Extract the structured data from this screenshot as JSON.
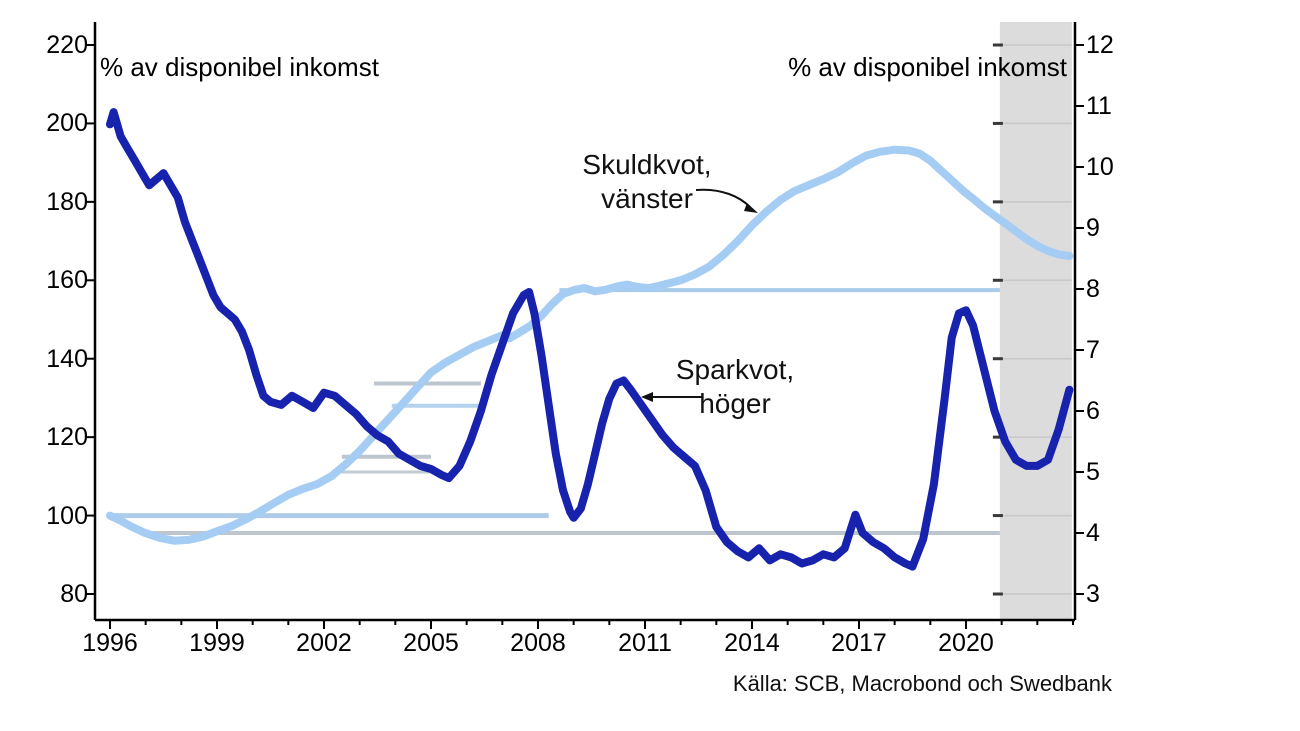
{
  "header": {
    "left_axis_unit": "% av disponibel inkomst",
    "right_axis_unit": "% av disponibel inkomst"
  },
  "annotations": {
    "debt": {
      "line1": "Skuldkvot,",
      "line2": "vänster"
    },
    "savings": {
      "line1": "Sparkvot,",
      "line2": "höger"
    }
  },
  "source": "Källa: SCB, Macrobond och Swedbank",
  "colors": {
    "debt_line": "#a5cdf3",
    "savings_line": "#1722ad",
    "forecast_band": "#dcdcdc",
    "band_gridline": "#c8c8c8",
    "ref_light_blue": "#aecbe9",
    "ref_gray": "#bdc6cf",
    "axis": "#000000"
  },
  "chart_data": {
    "type": "line",
    "x_axis": {
      "tick_years": [
        1996,
        1999,
        2002,
        2005,
        2008,
        2011,
        2014,
        2017,
        2020
      ],
      "range": [
        1995.6,
        2023.1
      ]
    },
    "left_axis": {
      "ticks": [
        220,
        200,
        180,
        160,
        140,
        120,
        100,
        80
      ],
      "range": [
        80,
        220
      ],
      "unit": "% av disponibel inkomst"
    },
    "right_axis": {
      "ticks": [
        12,
        11,
        10,
        9,
        8,
        7,
        6,
        5,
        4,
        3
      ],
      "range": [
        3,
        12
      ],
      "unit": "% av disponibel inkomst"
    },
    "forecast_band": {
      "from": 2020.95,
      "to": 2022.97
    },
    "series": [
      {
        "name": "Skuldkvot",
        "axis": "left",
        "color": "#a5cdf3",
        "width": 8,
        "points": [
          [
            1996.0,
            100
          ],
          [
            1996.3,
            98.7
          ],
          [
            1996.6,
            97.2
          ],
          [
            1997.0,
            95.5
          ],
          [
            1997.4,
            94.3
          ],
          [
            1997.8,
            93.6
          ],
          [
            1998.2,
            93.8
          ],
          [
            1998.6,
            94.6
          ],
          [
            1999.0,
            96.0
          ],
          [
            1999.4,
            97.3
          ],
          [
            1999.8,
            99.0
          ],
          [
            2000.2,
            101.0
          ],
          [
            2000.6,
            103.2
          ],
          [
            2001.0,
            105.3
          ],
          [
            2001.4,
            106.8
          ],
          [
            2001.8,
            108.0
          ],
          [
            2002.2,
            110.0
          ],
          [
            2002.6,
            113.0
          ],
          [
            2003.0,
            116.5
          ],
          [
            2003.4,
            120.5
          ],
          [
            2003.8,
            124.5
          ],
          [
            2004.2,
            128.5
          ],
          [
            2004.6,
            132.5
          ],
          [
            2005.0,
            136.5
          ],
          [
            2005.4,
            139.0
          ],
          [
            2005.8,
            141.0
          ],
          [
            2006.2,
            143.0
          ],
          [
            2006.6,
            144.5
          ],
          [
            2007.0,
            146.0
          ],
          [
            2007.2,
            145.2
          ],
          [
            2007.5,
            146.8
          ],
          [
            2007.8,
            148.5
          ],
          [
            2008.1,
            151.0
          ],
          [
            2008.4,
            154.0
          ],
          [
            2008.7,
            156.5
          ],
          [
            2009.0,
            157.5
          ],
          [
            2009.3,
            158.0
          ],
          [
            2009.6,
            157.2
          ],
          [
            2009.9,
            157.6
          ],
          [
            2010.2,
            158.4
          ],
          [
            2010.5,
            158.9
          ],
          [
            2010.8,
            158.3
          ],
          [
            2011.1,
            158.0
          ],
          [
            2011.4,
            158.6
          ],
          [
            2011.7,
            159.3
          ],
          [
            2012.0,
            160.0
          ],
          [
            2012.4,
            161.5
          ],
          [
            2012.8,
            163.5
          ],
          [
            2013.2,
            166.5
          ],
          [
            2013.6,
            170.0
          ],
          [
            2014.0,
            174.0
          ],
          [
            2014.4,
            177.5
          ],
          [
            2014.8,
            180.5
          ],
          [
            2015.2,
            182.8
          ],
          [
            2015.6,
            184.3
          ],
          [
            2016.0,
            185.8
          ],
          [
            2016.4,
            187.5
          ],
          [
            2016.8,
            189.8
          ],
          [
            2017.2,
            191.8
          ],
          [
            2017.6,
            192.8
          ],
          [
            2018.0,
            193.3
          ],
          [
            2018.4,
            193.1
          ],
          [
            2018.7,
            192.3
          ],
          [
            2019.0,
            190.5
          ],
          [
            2019.3,
            188.0
          ],
          [
            2019.6,
            185.5
          ],
          [
            2019.9,
            183.0
          ],
          [
            2020.2,
            180.8
          ],
          [
            2020.5,
            178.5
          ],
          [
            2020.8,
            176.5
          ],
          [
            2021.1,
            174.5
          ],
          [
            2021.4,
            172.5
          ],
          [
            2021.7,
            170.5
          ],
          [
            2022.0,
            168.8
          ],
          [
            2022.3,
            167.5
          ],
          [
            2022.6,
            166.6
          ],
          [
            2022.9,
            166.2
          ]
        ]
      },
      {
        "name": "Sparkvot",
        "axis": "right",
        "color": "#1722ad",
        "width": 8,
        "points": [
          [
            1996.0,
            10.7
          ],
          [
            1996.1,
            10.9
          ],
          [
            1996.3,
            10.5
          ],
          [
            1996.5,
            10.3
          ],
          [
            1996.7,
            10.1
          ],
          [
            1996.9,
            9.9
          ],
          [
            1997.1,
            9.7
          ],
          [
            1997.3,
            9.8
          ],
          [
            1997.5,
            9.9
          ],
          [
            1997.7,
            9.7
          ],
          [
            1997.9,
            9.5
          ],
          [
            1998.1,
            9.1
          ],
          [
            1998.3,
            8.8
          ],
          [
            1998.5,
            8.5
          ],
          [
            1998.7,
            8.2
          ],
          [
            1998.9,
            7.9
          ],
          [
            1999.1,
            7.7
          ],
          [
            1999.3,
            7.6
          ],
          [
            1999.5,
            7.5
          ],
          [
            1999.7,
            7.3
          ],
          [
            1999.9,
            7.0
          ],
          [
            2000.1,
            6.6
          ],
          [
            2000.3,
            6.25
          ],
          [
            2000.5,
            6.15
          ],
          [
            2000.8,
            6.1
          ],
          [
            2001.1,
            6.25
          ],
          [
            2001.4,
            6.15
          ],
          [
            2001.7,
            6.05
          ],
          [
            2002.0,
            6.3
          ],
          [
            2002.3,
            6.25
          ],
          [
            2002.6,
            6.1
          ],
          [
            2002.9,
            5.95
          ],
          [
            2003.2,
            5.75
          ],
          [
            2003.5,
            5.6
          ],
          [
            2003.8,
            5.5
          ],
          [
            2004.1,
            5.3
          ],
          [
            2004.4,
            5.2
          ],
          [
            2004.7,
            5.1
          ],
          [
            2005.0,
            5.05
          ],
          [
            2005.3,
            4.95
          ],
          [
            2005.5,
            4.9
          ],
          [
            2005.8,
            5.1
          ],
          [
            2006.1,
            5.5
          ],
          [
            2006.4,
            6.0
          ],
          [
            2006.7,
            6.6
          ],
          [
            2007.0,
            7.1
          ],
          [
            2007.3,
            7.6
          ],
          [
            2007.6,
            7.9
          ],
          [
            2007.75,
            7.95
          ],
          [
            2007.9,
            7.6
          ],
          [
            2008.1,
            6.9
          ],
          [
            2008.3,
            6.1
          ],
          [
            2008.5,
            5.3
          ],
          [
            2008.7,
            4.7
          ],
          [
            2008.9,
            4.35
          ],
          [
            2009.0,
            4.25
          ],
          [
            2009.2,
            4.4
          ],
          [
            2009.4,
            4.8
          ],
          [
            2009.6,
            5.3
          ],
          [
            2009.8,
            5.8
          ],
          [
            2010.0,
            6.2
          ],
          [
            2010.2,
            6.45
          ],
          [
            2010.4,
            6.5
          ],
          [
            2010.6,
            6.35
          ],
          [
            2010.9,
            6.1
          ],
          [
            2011.2,
            5.85
          ],
          [
            2011.5,
            5.6
          ],
          [
            2011.8,
            5.4
          ],
          [
            2012.1,
            5.25
          ],
          [
            2012.4,
            5.1
          ],
          [
            2012.7,
            4.7
          ],
          [
            2013.0,
            4.1
          ],
          [
            2013.3,
            3.85
          ],
          [
            2013.6,
            3.7
          ],
          [
            2013.9,
            3.6
          ],
          [
            2014.2,
            3.75
          ],
          [
            2014.5,
            3.55
          ],
          [
            2014.8,
            3.65
          ],
          [
            2015.1,
            3.6
          ],
          [
            2015.4,
            3.5
          ],
          [
            2015.7,
            3.55
          ],
          [
            2016.0,
            3.65
          ],
          [
            2016.3,
            3.6
          ],
          [
            2016.6,
            3.75
          ],
          [
            2016.9,
            4.3
          ],
          [
            2017.1,
            4.0
          ],
          [
            2017.4,
            3.85
          ],
          [
            2017.7,
            3.75
          ],
          [
            2018.0,
            3.6
          ],
          [
            2018.3,
            3.5
          ],
          [
            2018.5,
            3.45
          ],
          [
            2018.8,
            3.9
          ],
          [
            2019.1,
            4.8
          ],
          [
            2019.4,
            6.2
          ],
          [
            2019.6,
            7.2
          ],
          [
            2019.8,
            7.6
          ],
          [
            2020.0,
            7.65
          ],
          [
            2020.2,
            7.4
          ],
          [
            2020.5,
            6.7
          ],
          [
            2020.8,
            6.0
          ],
          [
            2021.1,
            5.5
          ],
          [
            2021.4,
            5.2
          ],
          [
            2021.7,
            5.1
          ],
          [
            2022.0,
            5.1
          ],
          [
            2022.3,
            5.2
          ],
          [
            2022.6,
            5.7
          ],
          [
            2022.9,
            6.35
          ]
        ]
      }
    ],
    "reference_lines": [
      {
        "axis": "left",
        "value": 100.0,
        "from": 1996.0,
        "to": 2008.3,
        "color": "#aecbe9",
        "width": 5
      },
      {
        "axis": "left",
        "value": 157.5,
        "from": 2008.6,
        "to": 2020.95,
        "color": "#a8cbec",
        "width": 4
      },
      {
        "axis": "left",
        "value": 128.0,
        "from": 2003.9,
        "to": 2006.35,
        "color": "#b5d2ee",
        "width": 4
      },
      {
        "axis": "right",
        "value": 6.45,
        "from": 2003.4,
        "to": 2006.4,
        "color": "#bdc6cf",
        "width": 4
      },
      {
        "axis": "right",
        "value": 5.25,
        "from": 2002.5,
        "to": 2005.0,
        "color": "#bdc6cf",
        "width": 4
      },
      {
        "axis": "right",
        "value": 5.0,
        "from": 2002.5,
        "to": 2005.0,
        "color": "#c2cbd4",
        "width": 3
      },
      {
        "axis": "right",
        "value": 4.0,
        "from": 1997.1,
        "to": 2020.95,
        "color": "#bdc6cf",
        "width": 4
      }
    ],
    "grid": "inside-forecast-band-only",
    "legend_position": "annotations-on-chart"
  }
}
